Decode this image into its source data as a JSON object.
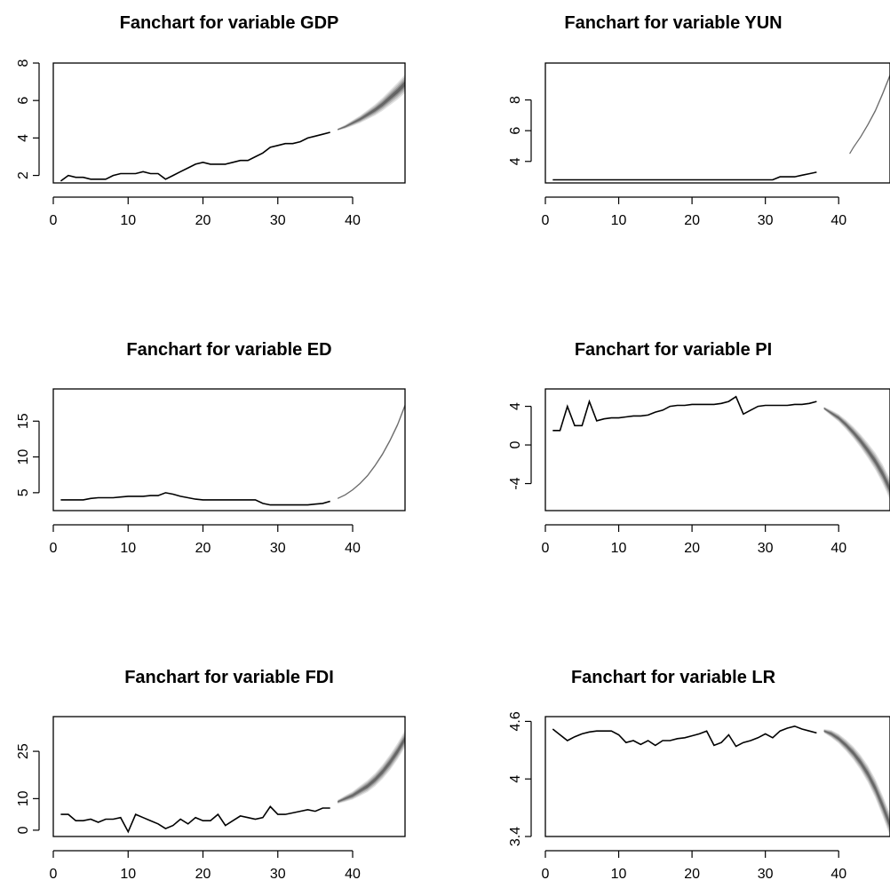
{
  "chart_data": [
    {
      "type": "line",
      "title": "Fanchart for variable GDP",
      "xlabel": "",
      "ylabel": "",
      "xlim": [
        0,
        47
      ],
      "ylim": [
        1.6,
        8
      ],
      "xticks": [
        0,
        10,
        20,
        30,
        40
      ],
      "yticks": [
        2,
        4,
        6,
        8
      ],
      "grid": false,
      "series": [
        {
          "role": "observed",
          "x": [
            1,
            2,
            3,
            4,
            5,
            6,
            7,
            8,
            9,
            10,
            11,
            12,
            13,
            14,
            15,
            16,
            17,
            18,
            19,
            20,
            21,
            22,
            23,
            24,
            25,
            26,
            27,
            28,
            29,
            30,
            31,
            32,
            33,
            34,
            35,
            36,
            37
          ],
          "y": [
            1.7,
            2.0,
            1.9,
            1.9,
            1.8,
            1.8,
            1.8,
            2.0,
            2.1,
            2.1,
            2.1,
            2.2,
            2.1,
            2.1,
            1.8,
            2.0,
            2.2,
            2.4,
            2.6,
            2.7,
            2.6,
            2.6,
            2.6,
            2.7,
            2.8,
            2.8,
            3.0,
            3.2,
            3.5,
            3.6,
            3.7,
            3.7,
            3.8,
            4.0,
            4.1,
            4.2,
            4.3
          ]
        },
        {
          "role": "fan",
          "x": [
            38,
            39,
            40,
            41,
            42,
            43,
            44,
            45,
            46,
            47
          ],
          "center": [
            4.45,
            4.6,
            4.8,
            5.0,
            5.25,
            5.5,
            5.8,
            6.15,
            6.5,
            6.9
          ],
          "spread": [
            0.05,
            0.1,
            0.15,
            0.2,
            0.25,
            0.3,
            0.35,
            0.4,
            0.45,
            0.5
          ]
        }
      ]
    },
    {
      "type": "line",
      "title": "Fanchart for variable YUN",
      "xlabel": "",
      "ylabel": "",
      "xlim": [
        0,
        47
      ],
      "ylim": [
        2.6,
        10.4
      ],
      "xticks": [
        0,
        10,
        20,
        30,
        40
      ],
      "yticks": [
        4,
        6,
        8
      ],
      "grid": false,
      "series": [
        {
          "role": "observed",
          "x": [
            1,
            2,
            3,
            4,
            5,
            6,
            7,
            8,
            9,
            10,
            11,
            12,
            13,
            14,
            15,
            16,
            17,
            18,
            19,
            20,
            21,
            22,
            23,
            24,
            25,
            26,
            27,
            28,
            29,
            30,
            31,
            32,
            33,
            34,
            35,
            36,
            37
          ],
          "y": [
            2.8,
            2.8,
            2.8,
            2.8,
            2.8,
            2.8,
            2.8,
            2.8,
            2.8,
            2.8,
            2.8,
            2.8,
            2.8,
            2.8,
            2.8,
            2.8,
            2.8,
            2.8,
            2.8,
            2.8,
            2.8,
            2.8,
            2.8,
            2.8,
            2.8,
            2.8,
            2.8,
            2.8,
            2.8,
            2.8,
            2.8,
            3.0,
            3.0,
            3.0,
            3.1,
            3.2,
            3.3
          ]
        },
        {
          "role": "fan",
          "x": [
            41.5,
            42,
            43,
            44,
            45,
            46,
            47
          ],
          "center": [
            4.5,
            4.9,
            5.6,
            6.4,
            7.3,
            8.4,
            9.6
          ],
          "spread": [
            0.03,
            0.05,
            0.07,
            0.09,
            0.11,
            0.13,
            0.15
          ]
        }
      ]
    },
    {
      "type": "line",
      "title": "Fanchart for variable ED",
      "xlabel": "",
      "ylabel": "",
      "xlim": [
        0,
        47
      ],
      "ylim": [
        2.5,
        19.5
      ],
      "xticks": [
        0,
        10,
        20,
        30,
        40
      ],
      "yticks": [
        5,
        10,
        15
      ],
      "grid": false,
      "series": [
        {
          "role": "observed",
          "x": [
            1,
            2,
            3,
            4,
            5,
            6,
            7,
            8,
            9,
            10,
            11,
            12,
            13,
            14,
            15,
            16,
            17,
            18,
            19,
            20,
            21,
            22,
            23,
            24,
            25,
            26,
            27,
            28,
            29,
            30,
            31,
            32,
            33,
            34,
            35,
            36,
            37
          ],
          "y": [
            4.0,
            4.0,
            4.0,
            4.0,
            4.2,
            4.3,
            4.3,
            4.3,
            4.4,
            4.5,
            4.5,
            4.5,
            4.6,
            4.6,
            5.0,
            4.8,
            4.5,
            4.3,
            4.1,
            4.0,
            4.0,
            4.0,
            4.0,
            4.0,
            4.0,
            4.0,
            4.0,
            3.5,
            3.3,
            3.3,
            3.3,
            3.3,
            3.3,
            3.3,
            3.4,
            3.5,
            3.8
          ]
        },
        {
          "role": "fan",
          "x": [
            38,
            39,
            40,
            41,
            42,
            43,
            44,
            45,
            46,
            47
          ],
          "center": [
            4.2,
            4.7,
            5.4,
            6.3,
            7.4,
            8.8,
            10.4,
            12.3,
            14.5,
            17.2
          ],
          "spread": [
            0.05,
            0.08,
            0.1,
            0.13,
            0.16,
            0.19,
            0.22,
            0.25,
            0.28,
            0.3
          ]
        }
      ]
    },
    {
      "type": "line",
      "title": "Fanchart for variable PI",
      "xlabel": "",
      "ylabel": "",
      "xlim": [
        0,
        47
      ],
      "ylim": [
        -6.8,
        5.8
      ],
      "xticks": [
        0,
        10,
        20,
        30,
        40
      ],
      "yticks": [
        -4,
        0,
        4
      ],
      "grid": false,
      "series": [
        {
          "role": "observed",
          "x": [
            1,
            2,
            3,
            4,
            5,
            6,
            7,
            8,
            9,
            10,
            11,
            12,
            13,
            14,
            15,
            16,
            17,
            18,
            19,
            20,
            21,
            22,
            23,
            24,
            25,
            26,
            27,
            28,
            29,
            30,
            31,
            32,
            33,
            34,
            35,
            36,
            37
          ],
          "y": [
            1.5,
            1.5,
            4.0,
            2.0,
            2.0,
            4.5,
            2.5,
            2.7,
            2.8,
            2.8,
            2.9,
            3.0,
            3.0,
            3.1,
            3.4,
            3.6,
            4.0,
            4.1,
            4.1,
            4.2,
            4.2,
            4.2,
            4.2,
            4.3,
            4.5,
            5.0,
            3.2,
            3.6,
            4.0,
            4.1,
            4.1,
            4.1,
            4.1,
            4.2,
            4.2,
            4.3,
            4.5
          ]
        },
        {
          "role": "fan",
          "x": [
            38,
            39,
            40,
            41,
            42,
            43,
            44,
            45,
            46,
            47
          ],
          "center": [
            3.8,
            3.3,
            2.8,
            2.1,
            1.3,
            0.4,
            -0.6,
            -1.7,
            -3.0,
            -4.6
          ],
          "spread": [
            0.15,
            0.3,
            0.4,
            0.5,
            0.6,
            0.7,
            0.8,
            0.9,
            1.0,
            1.1
          ]
        }
      ]
    },
    {
      "type": "line",
      "title": "Fanchart for variable FDI",
      "xlabel": "",
      "ylabel": "",
      "xlim": [
        0,
        47
      ],
      "ylim": [
        -2,
        36
      ],
      "xticks": [
        0,
        10,
        20,
        30,
        40
      ],
      "yticks": [
        0,
        10,
        25
      ],
      "grid": false,
      "series": [
        {
          "role": "observed",
          "x": [
            1,
            2,
            3,
            4,
            5,
            6,
            7,
            8,
            9,
            10,
            11,
            12,
            13,
            14,
            15,
            16,
            17,
            18,
            19,
            20,
            21,
            22,
            23,
            24,
            25,
            26,
            27,
            28,
            29,
            30,
            31,
            32,
            33,
            34,
            35,
            36,
            37
          ],
          "y": [
            5.0,
            5.0,
            3.0,
            3.0,
            3.5,
            2.5,
            3.5,
            3.5,
            4.0,
            -0.5,
            5.0,
            4.0,
            3.0,
            2.0,
            0.5,
            1.5,
            3.5,
            2.0,
            4.0,
            3.0,
            3.0,
            5.0,
            1.5,
            3.0,
            4.5,
            4.0,
            3.5,
            4.0,
            7.5,
            5.0,
            5.0,
            5.5,
            6.0,
            6.5,
            6.0,
            7.0,
            7.0
          ]
        },
        {
          "role": "fan",
          "x": [
            38,
            39,
            40,
            41,
            42,
            43,
            44,
            45,
            46,
            47
          ],
          "center": [
            9.0,
            10.0,
            11.0,
            12.5,
            14.0,
            16.0,
            18.5,
            21.5,
            25.0,
            29.0
          ],
          "spread": [
            0.6,
            1.0,
            1.3,
            1.6,
            1.9,
            2.1,
            2.3,
            2.5,
            2.6,
            2.7
          ]
        }
      ]
    },
    {
      "type": "line",
      "title": "Fanchart for variable LR",
      "xlabel": "",
      "ylabel": "",
      "xlim": [
        0,
        47
      ],
      "ylim": [
        3.4,
        4.65
      ],
      "xticks": [
        0,
        10,
        20,
        30,
        40
      ],
      "yticks": [
        3.4,
        4.0,
        4.6
      ],
      "grid": false,
      "series": [
        {
          "role": "observed",
          "x": [
            1,
            2,
            3,
            4,
            5,
            6,
            7,
            8,
            9,
            10,
            11,
            12,
            13,
            14,
            15,
            16,
            17,
            18,
            19,
            20,
            21,
            22,
            23,
            24,
            25,
            26,
            27,
            28,
            29,
            30,
            31,
            32,
            33,
            34,
            35,
            36,
            37
          ],
          "y": [
            4.52,
            4.46,
            4.4,
            4.44,
            4.47,
            4.49,
            4.5,
            4.5,
            4.5,
            4.46,
            4.38,
            4.4,
            4.36,
            4.4,
            4.35,
            4.4,
            4.4,
            4.42,
            4.43,
            4.45,
            4.47,
            4.5,
            4.35,
            4.38,
            4.46,
            4.34,
            4.38,
            4.4,
            4.43,
            4.47,
            4.43,
            4.5,
            4.53,
            4.55,
            4.52,
            4.5,
            4.48
          ]
        },
        {
          "role": "fan",
          "x": [
            38,
            39,
            40,
            41,
            42,
            43,
            44,
            45,
            46,
            47
          ],
          "center": [
            4.5,
            4.47,
            4.42,
            4.35,
            4.27,
            4.17,
            4.05,
            3.9,
            3.72,
            3.52
          ],
          "spread": [
            0.02,
            0.04,
            0.05,
            0.06,
            0.07,
            0.08,
            0.09,
            0.1,
            0.11,
            0.12
          ]
        }
      ]
    }
  ]
}
